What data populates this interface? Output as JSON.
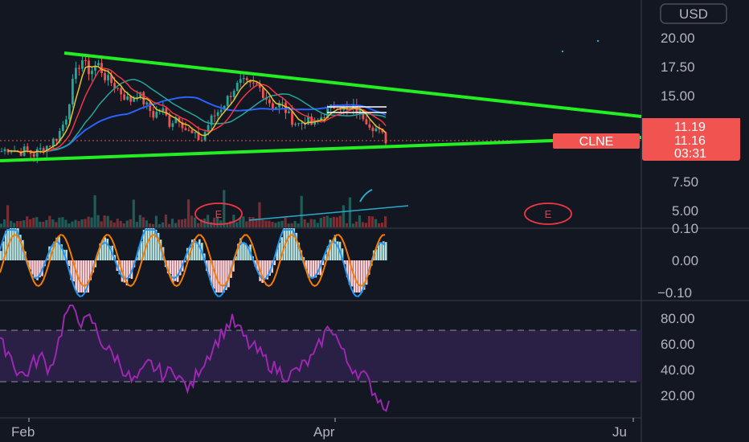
{
  "currency_button": "USD",
  "ticker_label": "CLNE",
  "price_tags": {
    "high": "11.19",
    "last": "11.16",
    "countdown": "03:31"
  },
  "earnings_label": "E",
  "colors": {
    "background": "#131722",
    "trendline": "#22ee22",
    "price_tag": "#f05350",
    "rsi": "#9c27b0",
    "rsi_band": "#2a1f45"
  },
  "chart_data": [
    {
      "type": "candlestick",
      "title": "",
      "x_tick_labels": [
        "Feb",
        "Apr",
        "Ju"
      ],
      "y_tick_labels": [
        "20.00",
        "17.50",
        "15.00",
        "7.50",
        "5.00"
      ],
      "ylim": [
        4.0,
        21.5
      ],
      "last_price": 11.16,
      "trendlines": [
        {
          "name": "",
          "points": [
            [
              "mid-Feb",
              18.7
            ],
            [
              "late-Jun",
              12.2
            ]
          ]
        },
        {
          "name": "",
          "points": [
            [
              "mid-Jan",
              9.9
            ],
            [
              "late-Jun",
              11.4
            ]
          ]
        }
      ],
      "close_series_approx": [
        10.2,
        10.5,
        10.1,
        10.3,
        9.9,
        10.4,
        10.8,
        11.5,
        13.0,
        16.5,
        18.2,
        17.0,
        17.8,
        16.5,
        16.0,
        15.2,
        14.5,
        15.3,
        14.2,
        13.3,
        13.9,
        12.6,
        13.3,
        12.1,
        11.5,
        11.2,
        12.8,
        13.6,
        14.5,
        15.6,
        16.2,
        15.8,
        15.9,
        14.9,
        14.0,
        14.3,
        13.1,
        12.5,
        12.9,
        12.4,
        13.2,
        13.8,
        14.3,
        13.6,
        13.9,
        13.4,
        12.6,
        12.0,
        11.2
      ],
      "moving_averages": [
        {
          "name": "",
          "color": "#e6c229"
        },
        {
          "name": "",
          "color": "#f23645"
        },
        {
          "name": "",
          "color": "#26a69a"
        },
        {
          "name": "",
          "color": "#2962ff"
        }
      ]
    },
    {
      "type": "histogram",
      "title": "",
      "y_tick_labels": [
        "0.10",
        "0.00",
        "−0.10"
      ],
      "ylim": [
        -0.11,
        0.11
      ]
    },
    {
      "type": "line",
      "title": "",
      "y_tick_labels": [
        "80.00",
        "60.00",
        "40.00",
        "20.00"
      ],
      "ylim": [
        5,
        90
      ],
      "band": [
        30,
        70
      ],
      "values_approx": [
        60,
        55,
        40,
        35,
        45,
        50,
        40,
        60,
        85,
        88,
        75,
        80,
        65,
        55,
        50,
        40,
        30,
        35,
        45,
        40,
        35,
        42,
        30,
        25,
        40,
        50,
        60,
        70,
        78,
        70,
        60,
        55,
        48,
        42,
        38,
        35,
        40,
        45,
        50,
        65,
        75,
        60,
        45,
        40,
        35,
        25,
        15,
        12
      ]
    }
  ]
}
